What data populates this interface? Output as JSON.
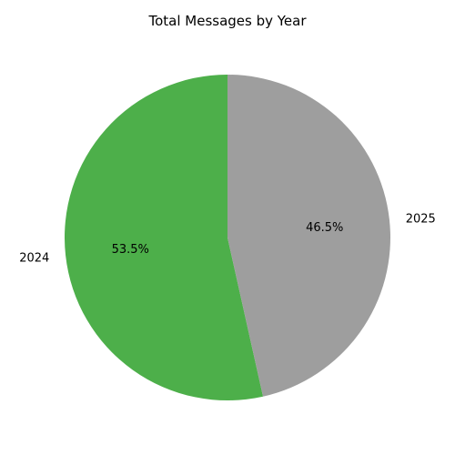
{
  "chart_data": {
    "type": "pie",
    "title": "Total Messages by Year",
    "categories": [
      "2024",
      "2025"
    ],
    "values": [
      53.5,
      46.5
    ],
    "labels": [
      "53.5%",
      "46.5%"
    ],
    "colors": [
      "#4daf4a",
      "#9e9e9e"
    ],
    "start_angle": "top (12 o'clock)",
    "direction": "counterclockwise"
  }
}
